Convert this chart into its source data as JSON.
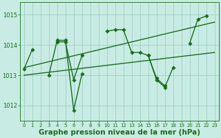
{
  "background_color": "#c8ece4",
  "grid_color": "#9ecec4",
  "line_color": "#1a6b1a",
  "xlabel": "Graphe pression niveau de la mer (hPa)",
  "xlabel_fontsize": 7.5,
  "xlim": [
    -0.5,
    23.5
  ],
  "ylim": [
    1011.5,
    1015.4
  ],
  "yticks": [
    1012,
    1013,
    1014,
    1015
  ],
  "xticks": [
    0,
    1,
    2,
    3,
    4,
    5,
    6,
    7,
    8,
    9,
    10,
    11,
    12,
    13,
    14,
    15,
    16,
    17,
    18,
    19,
    20,
    21,
    22,
    23
  ],
  "series_main_y": [
    1013.2,
    1013.85,
    1014.1,
    1014.1,
    1012.85,
    1013.65,
    1014.45,
    1014.5,
    1014.5,
    1013.75,
    1013.75,
    1013.65,
    1012.85,
    1012.6,
    1013.25,
    1014.05,
    1014.85,
    1014.95
  ],
  "series_main_segments": [
    [
      0,
      1
    ],
    [
      4,
      5,
      6,
      7
    ],
    [
      10,
      11,
      12,
      13,
      14,
      15,
      16,
      17,
      18
    ],
    [
      20,
      21,
      22
    ]
  ],
  "series_main_yvals": {
    "0": 1013.2,
    "1": 1013.85,
    "4": 1014.1,
    "5": 1014.1,
    "6": 1012.85,
    "7": 1013.65,
    "10": 1014.45,
    "11": 1014.5,
    "12": 1014.5,
    "13": 1013.75,
    "14": 1013.75,
    "15": 1013.65,
    "16": 1012.85,
    "17": 1012.6,
    "18": 1013.25,
    "20": 1014.05,
    "21": 1014.85,
    "22": 1014.95
  },
  "series2_segments": [
    [
      3,
      4,
      5,
      6,
      7
    ],
    [
      15,
      16,
      17
    ]
  ],
  "series2_yvals": {
    "3": 1013.0,
    "4": 1014.15,
    "5": 1014.15,
    "6": 1011.85,
    "7": 1013.05,
    "15": 1013.65,
    "16": 1012.9,
    "17": 1012.65
  },
  "trend1_x": [
    0,
    23
  ],
  "trend1_y": [
    1013.0,
    1013.75
  ],
  "trend2_x": [
    0,
    23
  ],
  "trend2_y": [
    1013.25,
    1014.75
  ],
  "line_width": 1.0,
  "marker_size": 2.8
}
